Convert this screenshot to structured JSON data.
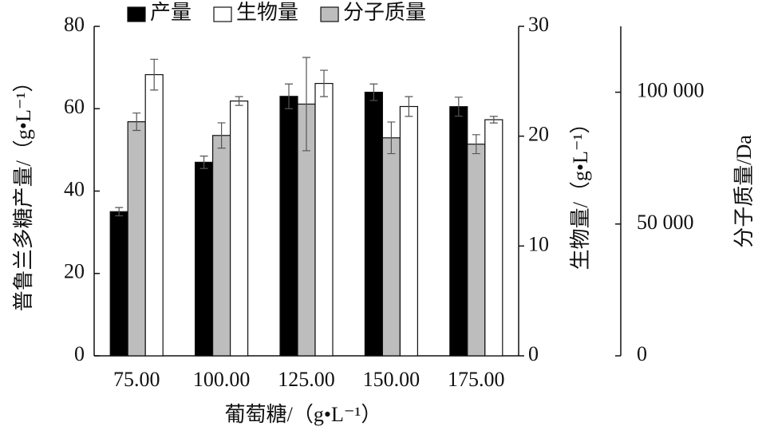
{
  "chart_data": {
    "type": "bar",
    "x_label": "葡萄糖/（g•L⁻¹）",
    "y_label": "普鲁兰多糖产量/（g•L⁻¹）",
    "y2_label": "生物量/（g•L⁻¹）",
    "y3_label": "分子质量/Da",
    "categories": [
      "75.00",
      "100.00",
      "125.00",
      "150.00",
      "175.00"
    ],
    "series": [
      {
        "name": "产量",
        "color": "#000000",
        "axis": "y",
        "values": [
          35,
          47,
          63,
          64,
          60.5
        ],
        "errors": [
          1,
          1.5,
          3,
          2,
          2.3
        ]
      },
      {
        "name": "分子质量",
        "color": "#bdbdbd",
        "axis": "y3",
        "values": [
          88800,
          83600,
          95500,
          82700,
          80300
        ],
        "errors": [
          3300,
          4800,
          17700,
          6000,
          3600
        ]
      },
      {
        "name": "生物量",
        "color": "#ffffff",
        "axis": "y2",
        "values": [
          25.6,
          23.2,
          24.8,
          22.7,
          21.5
        ],
        "errors": [
          1.4,
          0.4,
          1.2,
          0.9,
          0.3
        ]
      }
    ],
    "legend_order": [
      0,
      2,
      1
    ],
    "ylim": [
      0,
      80
    ],
    "yticks": [
      0,
      20,
      40,
      60,
      80
    ],
    "y2lim": [
      0,
      30
    ],
    "y2ticks": [
      0,
      10,
      20,
      30
    ],
    "y3lim": [
      0,
      125000
    ],
    "y3ticks": [
      0,
      {
        "value": 50000,
        "label": "50 000"
      },
      {
        "value": 100000,
        "label": "100 000"
      }
    ]
  }
}
